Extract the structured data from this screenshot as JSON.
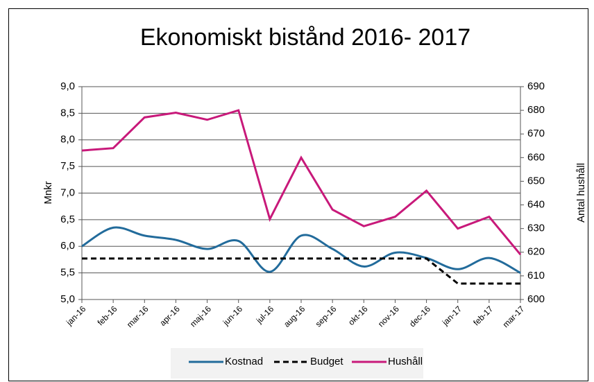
{
  "chart_data": {
    "type": "line",
    "title": "Ekonomiskt bistånd 2016- 2017",
    "ylabel": "Mnkr",
    "y2label": "Antal hushåll",
    "categories": [
      "jan-16",
      "feb-16",
      "mar-16",
      "apr-16",
      "maj-16",
      "jun-16",
      "jul-16",
      "aug-16",
      "sep-16",
      "okt-16",
      "nov-16",
      "dec-16",
      "jan-17",
      "feb-17",
      "mar-17"
    ],
    "series": [
      {
        "name": "Kostnad",
        "color": "#226b9b",
        "smooth": true,
        "values": [
          6.0,
          6.35,
          6.2,
          6.12,
          5.95,
          6.1,
          5.52,
          6.2,
          5.95,
          5.62,
          5.88,
          5.78,
          5.57,
          5.78,
          5.5
        ]
      },
      {
        "name": "Budget",
        "color": "#000000",
        "dashed": true,
        "values": [
          5.77,
          5.77,
          5.77,
          5.77,
          5.77,
          5.77,
          5.77,
          5.77,
          5.77,
          5.77,
          5.77,
          5.77,
          5.3,
          5.3,
          5.3
        ]
      },
      {
        "name": "Hushåll",
        "color": "#c8197a",
        "axis": "y2",
        "values": [
          663,
          664,
          677,
          679,
          676,
          680,
          634,
          660,
          638,
          631,
          635,
          646,
          630,
          635,
          619
        ]
      }
    ],
    "ylim": [
      5,
      9
    ],
    "yticks": [
      {
        "value": 5,
        "label": "5,0"
      },
      {
        "value": 5.5,
        "label": "5,5"
      },
      {
        "value": 6,
        "label": "6,0"
      },
      {
        "value": 6.5,
        "label": "6,5"
      },
      {
        "value": 7,
        "label": "7,0"
      },
      {
        "value": 7.5,
        "label": "7,5"
      },
      {
        "value": 8,
        "label": "8,0"
      },
      {
        "value": 8.5,
        "label": "8,5"
      },
      {
        "value": 9,
        "label": "9,0"
      }
    ],
    "y2lim": [
      600,
      690
    ],
    "y2ticks": [
      600,
      610,
      620,
      630,
      640,
      650,
      660,
      670,
      680,
      690
    ],
    "grid": true,
    "legend": "bottom"
  }
}
